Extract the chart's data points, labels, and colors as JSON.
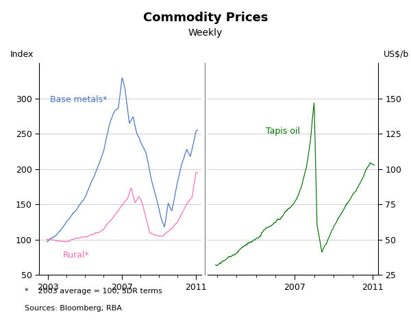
{
  "title": "Commodity Prices",
  "subtitle": "Weekly",
  "ylabel_left": "Index",
  "ylabel_right": "US$/b",
  "footnote_star": "*    2003 average = 100; SDR terms",
  "footnote_sources": "Sources: Bloomberg; RBA",
  "left_ylim": [
    50,
    350
  ],
  "right_ylim": [
    25,
    175
  ],
  "left_yticks": [
    50,
    100,
    150,
    200,
    250,
    300
  ],
  "right_yticks": [
    25,
    50,
    75,
    100,
    125,
    150
  ],
  "left_xticks": [
    2003,
    2007,
    2011
  ],
  "right_xticks": [
    2007,
    2011
  ],
  "left_xlim": [
    2002.5,
    2011.3
  ],
  "right_xlim": [
    2002.5,
    2011.3
  ],
  "colors": {
    "base_metals": "#4472C4",
    "rural": "#FF69B4",
    "tapis_oil": "#007000",
    "grid": "#C8C8C8",
    "background": "#FFFFFF"
  },
  "label_base_metals": "Base metals*",
  "label_rural": "Rural*",
  "label_tapis": "Tapis oil"
}
